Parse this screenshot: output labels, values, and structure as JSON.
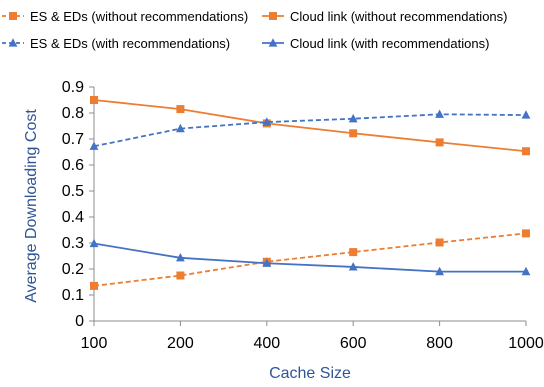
{
  "chart_data": {
    "type": "line",
    "xlabel": "Cache Size",
    "ylabel": "Average Downloading Cost",
    "categories": [
      "100",
      "200",
      "400",
      "600",
      "800",
      "1000"
    ],
    "ylim": [
      0,
      0.9
    ],
    "yticks": [
      "0",
      "0.1",
      "0.2",
      "0.3",
      "0.4",
      "0.5",
      "0.6",
      "0.7",
      "0.8",
      "0.9"
    ],
    "grid": false,
    "legend_position": "top",
    "series": [
      {
        "name": "ES & EDs (without recommendations)",
        "color": "#ED7D31",
        "marker": "square",
        "line": "dashed",
        "values": [
          0.135,
          0.175,
          0.228,
          0.265,
          0.302,
          0.337
        ]
      },
      {
        "name": "Cloud link (without recommendations)",
        "color": "#ED7D31",
        "marker": "square",
        "line": "solid",
        "values": [
          0.85,
          0.815,
          0.76,
          0.722,
          0.687,
          0.653
        ]
      },
      {
        "name": "ES & EDs (with recommendations)",
        "color": "#4472C4",
        "marker": "triangle",
        "line": "dashed",
        "values": [
          0.672,
          0.74,
          0.765,
          0.778,
          0.795,
          0.792
        ]
      },
      {
        "name": "Cloud link (with recommendations)",
        "color": "#4472C4",
        "marker": "triangle",
        "line": "solid",
        "values": [
          0.298,
          0.243,
          0.222,
          0.208,
          0.19,
          0.19
        ]
      }
    ],
    "axis_title_color": "#2F5597"
  }
}
